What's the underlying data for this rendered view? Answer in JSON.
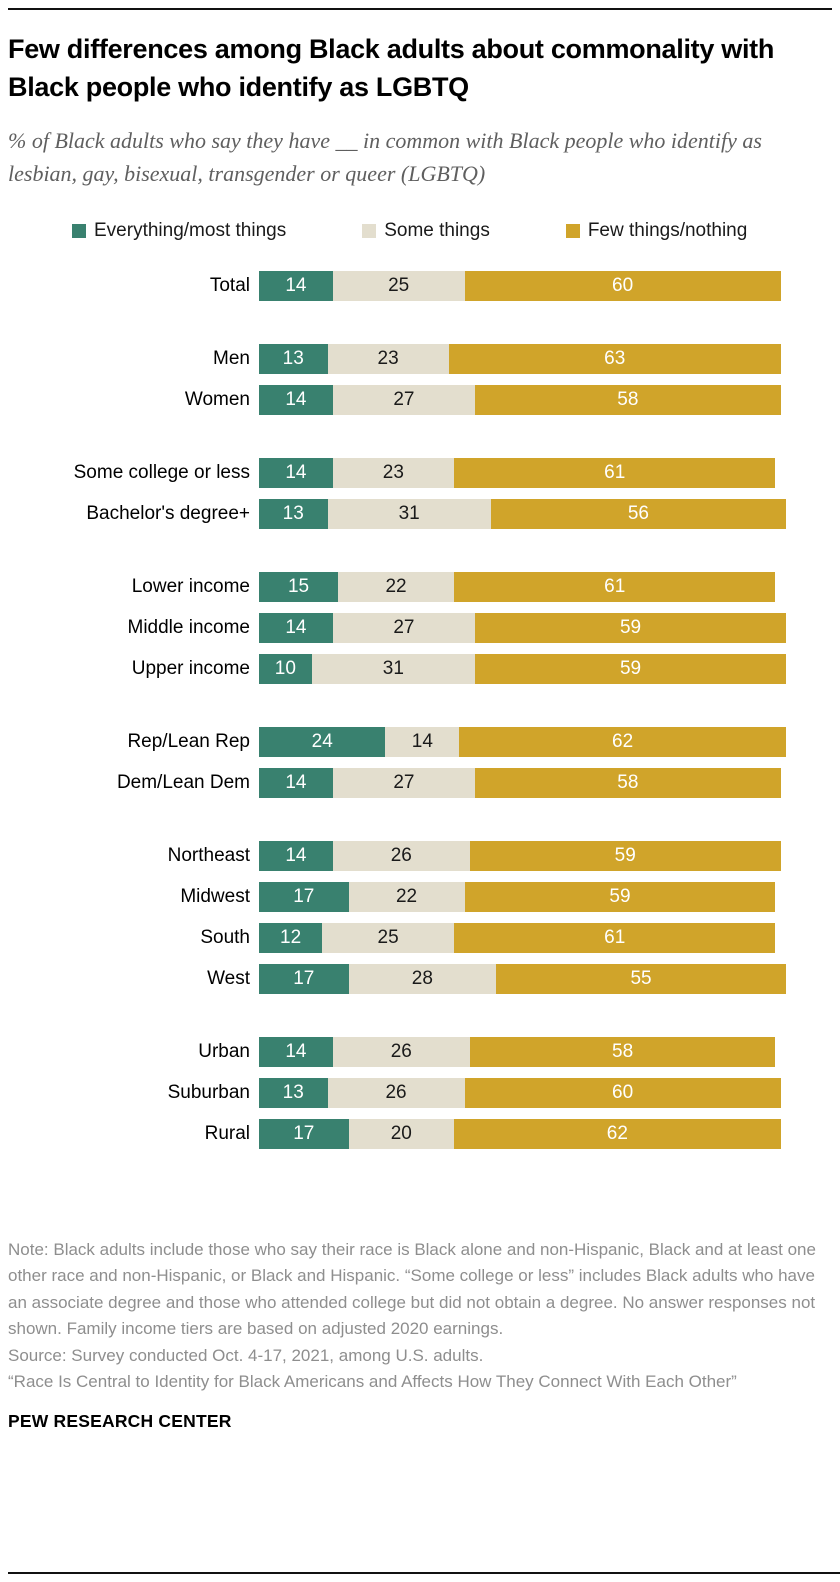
{
  "header": {
    "title": "Few differences among Black adults about commonality with Black people who identify as LGBTQ",
    "subtitle": "% of Black adults who say they have __ in common with Black people who identify as lesbian, gay, bisexual, transgender or queer (LGBTQ)"
  },
  "chart_data": {
    "type": "bar",
    "stacked": true,
    "orientation": "horizontal",
    "xlim": [
      0,
      100
    ],
    "unit": "%",
    "grid": false,
    "legend_position": "top",
    "series": [
      {
        "name": "Everything/most things",
        "color": "#39816F",
        "text_color": "#ffffff"
      },
      {
        "name": "Some things",
        "color": "#E3DECE",
        "text_color": "#1a1a1a"
      },
      {
        "name": "Few things/nothing",
        "color": "#D0A42A",
        "text_color": "#ffffff"
      }
    ],
    "groups": [
      {
        "rows": [
          {
            "label": "Total",
            "values": [
              14,
              25,
              60
            ]
          }
        ]
      },
      {
        "rows": [
          {
            "label": "Men",
            "values": [
              13,
              23,
              63
            ]
          },
          {
            "label": "Women",
            "values": [
              14,
              27,
              58
            ]
          }
        ]
      },
      {
        "rows": [
          {
            "label": "Some college or less",
            "values": [
              14,
              23,
              61
            ]
          },
          {
            "label": "Bachelor's degree+",
            "values": [
              13,
              31,
              56
            ]
          }
        ]
      },
      {
        "rows": [
          {
            "label": "Lower income",
            "values": [
              15,
              22,
              61
            ]
          },
          {
            "label": "Middle income",
            "values": [
              14,
              27,
              59
            ]
          },
          {
            "label": "Upper income",
            "values": [
              10,
              31,
              59
            ]
          }
        ]
      },
      {
        "rows": [
          {
            "label": "Rep/Lean Rep",
            "values": [
              24,
              14,
              62
            ]
          },
          {
            "label": "Dem/Lean Dem",
            "values": [
              14,
              27,
              58
            ]
          }
        ]
      },
      {
        "rows": [
          {
            "label": "Northeast",
            "values": [
              14,
              26,
              59
            ]
          },
          {
            "label": "Midwest",
            "values": [
              17,
              22,
              59
            ]
          },
          {
            "label": "South",
            "values": [
              12,
              25,
              61
            ]
          },
          {
            "label": "West",
            "values": [
              17,
              28,
              55
            ]
          }
        ]
      },
      {
        "rows": [
          {
            "label": "Urban",
            "values": [
              14,
              26,
              58
            ]
          },
          {
            "label": "Suburban",
            "values": [
              13,
              26,
              60
            ]
          },
          {
            "label": "Rural",
            "values": [
              17,
              20,
              62
            ]
          }
        ]
      }
    ]
  },
  "footer": {
    "note": "Note: Black adults include those who say their race is Black alone and non-Hispanic, Black and at least one other race and non-Hispanic, or Black and Hispanic. “Some college or less” includes Black adults who have an associate degree and those who attended college but did not obtain a degree. No answer responses not shown. Family income tiers are based on adjusted 2020 earnings.",
    "source": "Source: Survey conducted Oct. 4-17, 2021, among U.S. adults.",
    "quote": "“Race Is Central to Identity for Black Americans and Affects How They Connect With Each Other”",
    "brand": "PEW RESEARCH CENTER"
  }
}
